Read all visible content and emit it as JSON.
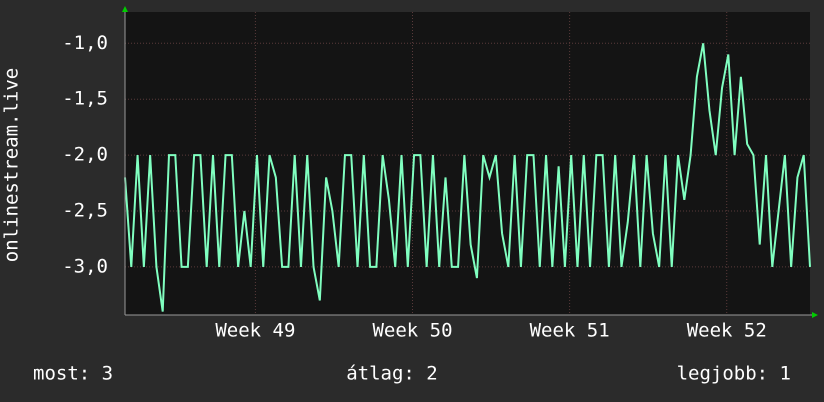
{
  "chart_data": {
    "type": "line",
    "y_label": "onlinestream.live",
    "x": [
      48.17,
      48.21,
      48.25,
      48.29,
      48.33,
      48.37,
      48.41,
      48.45,
      48.49,
      48.53,
      48.57,
      48.61,
      48.65,
      48.69,
      48.73,
      48.77,
      48.81,
      48.85,
      48.89,
      48.93,
      48.97,
      49.01,
      49.05,
      49.09,
      49.13,
      49.17,
      49.21,
      49.25,
      49.29,
      49.33,
      49.37,
      49.41,
      49.45,
      49.49,
      49.53,
      49.57,
      49.61,
      49.65,
      49.69,
      49.73,
      49.77,
      49.81,
      49.85,
      49.89,
      49.93,
      49.97,
      50.01,
      50.05,
      50.09,
      50.13,
      50.17,
      50.21,
      50.25,
      50.29,
      50.33,
      50.37,
      50.41,
      50.45,
      50.49,
      50.53,
      50.57,
      50.61,
      50.65,
      50.69,
      50.73,
      50.77,
      50.81,
      50.85,
      50.89,
      50.93,
      50.97,
      51.01,
      51.05,
      51.09,
      51.13,
      51.17,
      51.21,
      51.25,
      51.29,
      51.33,
      51.37,
      51.41,
      51.45,
      51.49,
      51.53,
      51.57,
      51.61,
      51.65,
      51.69,
      51.73,
      51.77,
      51.81,
      51.85,
      51.89,
      51.93,
      51.97,
      52.01,
      52.05,
      52.09,
      52.13,
      52.17,
      52.21,
      52.25,
      52.29,
      52.33,
      52.37,
      52.41,
      52.45,
      52.49,
      52.53
    ],
    "series": [
      {
        "color": "#80ffc0",
        "values": [
          -2.2,
          -3,
          -2,
          -3,
          -2,
          -3,
          -3.4,
          -2,
          -2,
          -3,
          -3,
          -2,
          -2,
          -3,
          -2,
          -3,
          -2,
          -2,
          -3,
          -2.5,
          -3,
          -2,
          -3,
          -2,
          -2.2,
          -3,
          -3,
          -2,
          -3,
          -2,
          -3,
          -3.3,
          -2.2,
          -2.5,
          -3,
          -2,
          -2,
          -3,
          -2,
          -3,
          -3,
          -2,
          -2.4,
          -3,
          -2,
          -3,
          -2,
          -2,
          -3,
          -2,
          -3,
          -2.2,
          -3,
          -3,
          -2,
          -2.8,
          -3.1,
          -2,
          -2.2,
          -2,
          -2.7,
          -3,
          -2,
          -3,
          -2,
          -2,
          -3,
          -2,
          -3,
          -2.1,
          -3,
          -2,
          -3,
          -2,
          -3,
          -2,
          -2,
          -3,
          -2,
          -3,
          -2.6,
          -2,
          -3,
          -2,
          -2.7,
          -3,
          -2,
          -3,
          -2,
          -2.4,
          -2,
          -1.3,
          -1,
          -1.6,
          -2,
          -1.4,
          -1.1,
          -2,
          -1.3,
          -1.9,
          -2,
          -2.8,
          -2,
          -3,
          -2.5,
          -2,
          -3,
          -2.2,
          -2,
          -3
        ]
      }
    ],
    "xlim": [
      48.17,
      52.53
    ],
    "xticks": [
      {
        "value": 49,
        "label": "Week 49"
      },
      {
        "value": 50,
        "label": "Week 50"
      },
      {
        "value": 51,
        "label": "Week 51"
      },
      {
        "value": 52,
        "label": "Week 52"
      }
    ],
    "ylim": [
      -3.43,
      -0.72
    ],
    "yticks": [
      {
        "value": -3,
        "label": "-3,0"
      },
      {
        "value": -2.5,
        "label": "-2,5"
      },
      {
        "value": -2,
        "label": "-2,0"
      },
      {
        "value": -1.5,
        "label": "-1,5"
      },
      {
        "value": -1,
        "label": "-1,0"
      }
    ],
    "grid": true,
    "stats": [
      "most: 3",
      "átlag: 2",
      "legjobb: 1"
    ]
  }
}
